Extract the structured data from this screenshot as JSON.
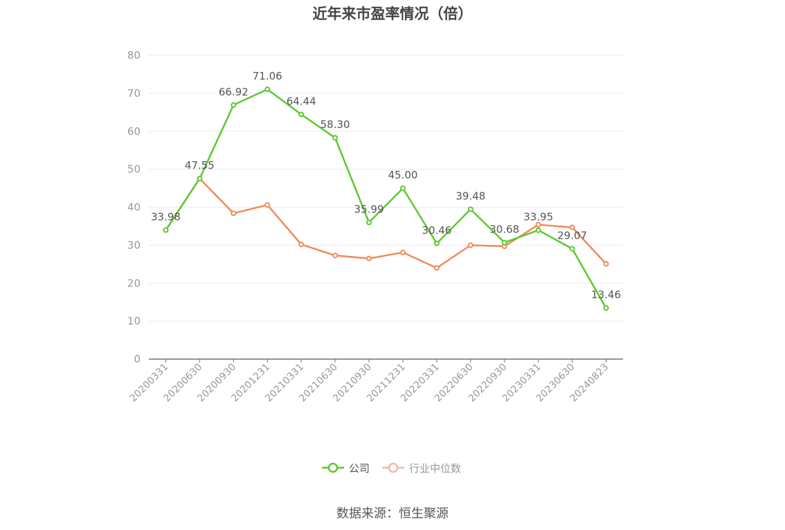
{
  "title": "近年来市盈率情况（倍）",
  "source": "数据来源：恒生聚源",
  "colors": {
    "company": "#5cc92f",
    "industry": "#f08a58",
    "industry_legend": "#f6b79c"
  },
  "chart_data": {
    "type": "line",
    "title": "近年来市盈率情况（倍）",
    "categories": [
      "20200331",
      "20200630",
      "20200930",
      "20201231",
      "20210331",
      "20210630",
      "20210930",
      "20211231",
      "20220331",
      "20220630",
      "20220930",
      "20230331",
      "20230630",
      "20240823"
    ],
    "ylim": [
      0,
      80
    ],
    "yticks": [
      0,
      10,
      20,
      30,
      40,
      50,
      60,
      70,
      80
    ],
    "grid": true,
    "legend": "bottom",
    "series": [
      {
        "name": "公司",
        "values": [
          33.98,
          47.55,
          66.92,
          71.06,
          64.44,
          58.3,
          35.99,
          45.0,
          30.46,
          39.48,
          30.68,
          33.95,
          29.07,
          13.46
        ],
        "labels": [
          "33.98",
          "47.55",
          "66.92",
          "71.06",
          "64.44",
          "58.30",
          "35.99",
          "45.00",
          "30.46",
          "39.48",
          "30.68",
          "33.95",
          "29.07",
          "13.46"
        ]
      },
      {
        "name": "行业中位数",
        "values": [
          33.98,
          47.55,
          38.4,
          40.6,
          30.2,
          27.3,
          26.5,
          28.1,
          24.0,
          30.0,
          29.7,
          35.4,
          34.7,
          25.1
        ]
      }
    ]
  }
}
